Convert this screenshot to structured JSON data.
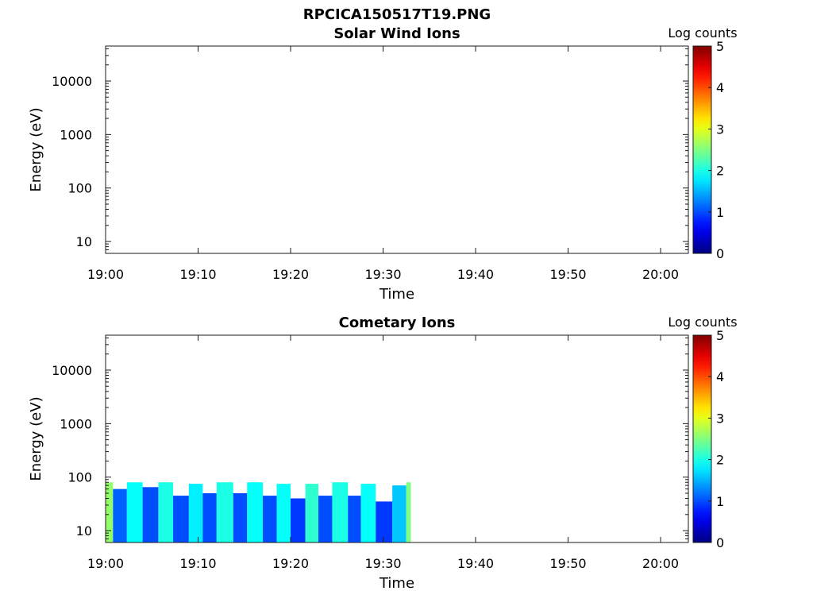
{
  "figure_title": "RPCICA150517T19.PNG",
  "chart_data": [
    {
      "type": "heatmap",
      "title": "Solar Wind Ions",
      "xlabel": "Time",
      "ylabel": "Energy (eV)",
      "xlim": [
        "19:00",
        "20:03"
      ],
      "x_ticks": [
        "19:00",
        "19:10",
        "19:20",
        "19:30",
        "19:40",
        "19:50",
        "20:00"
      ],
      "y_scale": "log",
      "ylim": [
        6,
        45000
      ],
      "y_ticks": [
        "10",
        "100",
        "1000",
        "10000"
      ],
      "colorbar": {
        "label": "Log counts",
        "min": 0,
        "max": 5,
        "ticks": [
          "0",
          "1",
          "2",
          "3",
          "4",
          "5"
        ],
        "colormap": "jet"
      },
      "bands": []
    },
    {
      "type": "heatmap",
      "title": "Cometary Ions",
      "xlabel": "Time",
      "ylabel": "Energy (eV)",
      "xlim": [
        "19:00",
        "20:03"
      ],
      "x_ticks": [
        "19:00",
        "19:10",
        "19:20",
        "19:30",
        "19:40",
        "19:50",
        "20:00"
      ],
      "y_scale": "log",
      "ylim": [
        6,
        45000
      ],
      "y_ticks": [
        "10",
        "100",
        "1000",
        "10000"
      ],
      "colorbar": {
        "label": "Log counts",
        "min": 0,
        "max": 5,
        "ticks": [
          "0",
          "1",
          "2",
          "3",
          "4",
          "5"
        ],
        "colormap": "jet"
      },
      "bands": [
        {
          "start": "19:00.0",
          "end": "19:00.8",
          "top_ev": 80,
          "log_counts": 2.6
        },
        {
          "start": "19:00.8",
          "end": "19:02.3",
          "top_ev": 60,
          "log_counts": 1.1
        },
        {
          "start": "19:02.3",
          "end": "19:04.0",
          "top_ev": 80,
          "log_counts": 1.9
        },
        {
          "start": "19:04.0",
          "end": "19:05.7",
          "top_ev": 65,
          "log_counts": 1.0
        },
        {
          "start": "19:05.7",
          "end": "19:07.3",
          "top_ev": 80,
          "log_counts": 2.0
        },
        {
          "start": "19:07.3",
          "end": "19:09.0",
          "top_ev": 45,
          "log_counts": 1.0
        },
        {
          "start": "19:09.0",
          "end": "19:10.5",
          "top_ev": 75,
          "log_counts": 1.8
        },
        {
          "start": "19:10.5",
          "end": "19:12.0",
          "top_ev": 50,
          "log_counts": 1.0
        },
        {
          "start": "19:12.0",
          "end": "19:13.8",
          "top_ev": 80,
          "log_counts": 2.0
        },
        {
          "start": "19:13.8",
          "end": "19:15.3",
          "top_ev": 50,
          "log_counts": 1.0
        },
        {
          "start": "19:15.3",
          "end": "19:17.0",
          "top_ev": 80,
          "log_counts": 1.9
        },
        {
          "start": "19:17.0",
          "end": "19:18.5",
          "top_ev": 45,
          "log_counts": 1.0
        },
        {
          "start": "19:18.5",
          "end": "19:20.0",
          "top_ev": 75,
          "log_counts": 1.9
        },
        {
          "start": "19:20.0",
          "end": "19:21.6",
          "top_ev": 40,
          "log_counts": 0.9
        },
        {
          "start": "19:21.6",
          "end": "19:23.0",
          "top_ev": 75,
          "log_counts": 2.1
        },
        {
          "start": "19:23.0",
          "end": "19:24.5",
          "top_ev": 45,
          "log_counts": 1.0
        },
        {
          "start": "19:24.5",
          "end": "19:26.2",
          "top_ev": 80,
          "log_counts": 2.0
        },
        {
          "start": "19:26.2",
          "end": "19:27.6",
          "top_ev": 45,
          "log_counts": 1.0
        },
        {
          "start": "19:27.6",
          "end": "19:29.2",
          "top_ev": 75,
          "log_counts": 1.9
        },
        {
          "start": "19:29.2",
          "end": "19:31.0",
          "top_ev": 35,
          "log_counts": 0.9
        },
        {
          "start": "19:31.0",
          "end": "19:32.5",
          "top_ev": 70,
          "log_counts": 1.6
        },
        {
          "start": "19:32.5",
          "end": "19:33.0",
          "top_ev": 80,
          "log_counts": 2.5
        }
      ]
    }
  ]
}
